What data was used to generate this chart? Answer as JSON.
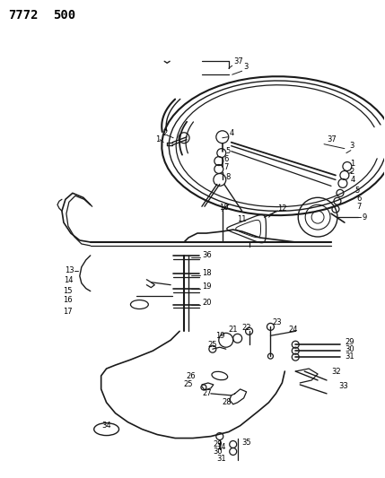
{
  "bg_color": "#ffffff",
  "line_color": "#1a1a1a",
  "fig_width": 4.29,
  "fig_height": 5.33,
  "dpi": 100,
  "title1": "7772",
  "title2": "500",
  "label_fs": 6.0,
  "title_fs": 10
}
